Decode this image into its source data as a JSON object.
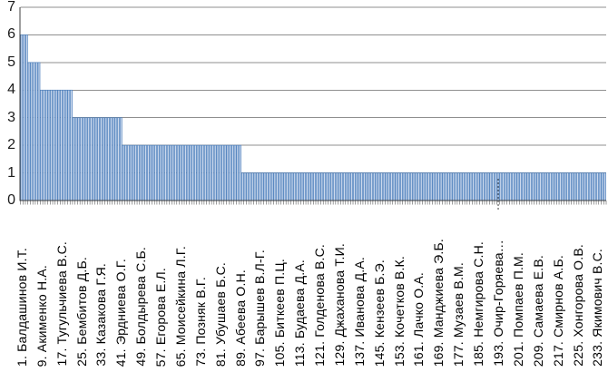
{
  "chart_data": {
    "type": "bar",
    "title": "",
    "xlabel": "",
    "ylabel": "",
    "grid": true,
    "legend": false,
    "ylim": [
      0,
      7
    ],
    "yticks": [
      0,
      1,
      2,
      3,
      4,
      5,
      6,
      7
    ],
    "n_bars": 236,
    "bar_value_groups": [
      {
        "value": 6,
        "from_rank": 1,
        "to_rank": 3
      },
      {
        "value": 5,
        "from_rank": 4,
        "to_rank": 8
      },
      {
        "value": 4,
        "from_rank": 9,
        "to_rank": 21
      },
      {
        "value": 3,
        "from_rank": 22,
        "to_rank": 41
      },
      {
        "value": 2,
        "from_rank": 42,
        "to_rank": 89
      },
      {
        "value": 1,
        "from_rank": 90,
        "to_rank": 236
      }
    ],
    "value_counts": {
      "6": 3,
      "5": 5,
      "4": 13,
      "3": 20,
      "2": 48,
      "1": 147
    },
    "x_tick_interval": 8,
    "x_tick_labels": [
      "1. Балдашинов И.Т.",
      "9. Акименко Н.А.",
      "17. Тугульчиева В.С.",
      "25. Бембитов Д.Б.",
      "33. Казакова Г.Я.",
      "41. Эрдниева О.Г.",
      "49. Болдырева С.Б.",
      "57. Егорова Е.Л.",
      "65. Моисейкина Л.Г.",
      "73. Позняк В.Г.",
      "81. Убушаев Б.С.",
      "89. Абеева О.Н.",
      "97. Барышев В.Л-Г.",
      "105. Биткеев П.Ц.",
      "113. Будаева Д.А.",
      "121. Голденова В.С.",
      "129. Джаханова Т.И.",
      "137. Иванова Д.А.",
      "145. Кензеев Б.Э.",
      "153. Кочетков В.К.",
      "161. Лачко О.А.",
      "169. Манджиева Э.Б.",
      "177. Музаев В.М.",
      "185. Немгирова С.Н.",
      "193. Очир-Горяева…",
      "201. Помпаев П.М.",
      "209. Самаева Е.В.",
      "217. Смирнов А.Б.",
      "225. Хонгорова О.В.",
      "233. Якимович В.С."
    ],
    "truncated_label_index": 24,
    "colors": {
      "bar_fill": "#ccd9ed",
      "bar_border": "#4f81bd",
      "gridline": "#8f8f8f",
      "axis": "#3f3f3f",
      "tick": "#3f3f3f",
      "text": "#000000",
      "background": "#ffffff"
    }
  }
}
